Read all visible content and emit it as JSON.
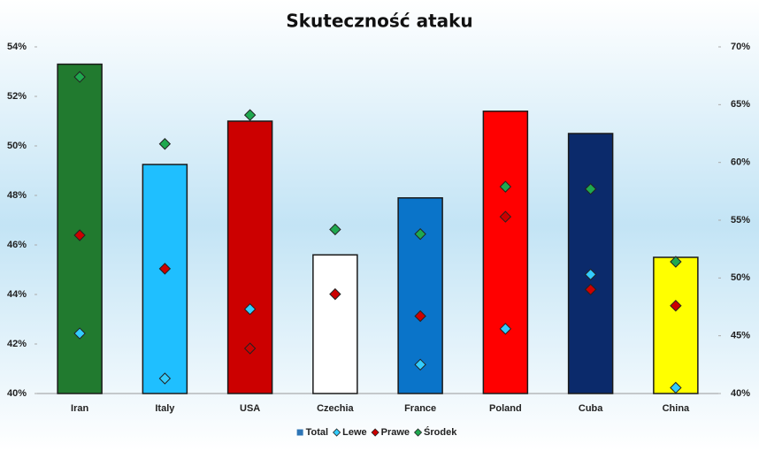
{
  "chart_data": {
    "type": "bar",
    "title": "Skuteczność ataku",
    "categories": [
      "Iran",
      "Italy",
      "USA",
      "Czechia",
      "France",
      "Poland",
      "Cuba",
      "China"
    ],
    "series": [
      {
        "name": "Total",
        "type": "bar",
        "color": "#2e75b6",
        "colors": [
          "#217a2f",
          "#1fbfff",
          "#cc0000",
          "#ffffff",
          "#0a74c9",
          "#ff0000",
          "#0b2a6b",
          "#ffff00"
        ],
        "values": [
          53.3,
          49.25,
          51.0,
          45.6,
          47.9,
          51.4,
          50.5,
          45.5
        ]
      },
      {
        "name": "Lewe",
        "type": "scatter",
        "axis": "y2",
        "color": "#33ccff",
        "values": [
          45.2,
          41.3,
          47.3,
          null,
          42.5,
          45.6,
          50.3,
          40.5
        ]
      },
      {
        "name": "Prawe",
        "type": "scatter",
        "axis": "y2",
        "color": "#cc0000",
        "values": [
          53.7,
          50.8,
          43.9,
          48.6,
          46.7,
          55.3,
          49.0,
          47.6
        ]
      },
      {
        "name": "Środek",
        "type": "scatter",
        "axis": "y2",
        "color": "#1fa84f",
        "values": [
          67.4,
          61.6,
          64.1,
          54.2,
          53.8,
          57.9,
          57.7,
          51.4
        ]
      }
    ],
    "ylim": [
      40,
      54
    ],
    "yticks": [
      {
        "value": 40,
        "label": "40%"
      },
      {
        "value": 42,
        "label": "42%"
      },
      {
        "value": 44,
        "label": "44%"
      },
      {
        "value": 46,
        "label": "46%"
      },
      {
        "value": 48,
        "label": "48%"
      },
      {
        "value": 50,
        "label": "50%"
      },
      {
        "value": 52,
        "label": "52%"
      },
      {
        "value": 54,
        "label": "54%"
      }
    ],
    "y2lim": [
      40,
      70
    ],
    "y2ticks": [
      {
        "value": 40,
        "label": "40%"
      },
      {
        "value": 45,
        "label": "45%"
      },
      {
        "value": 50,
        "label": "50%"
      },
      {
        "value": 55,
        "label": "55%"
      },
      {
        "value": 60,
        "label": "60%"
      },
      {
        "value": 65,
        "label": "65%"
      },
      {
        "value": 70,
        "label": "70%"
      }
    ],
    "legend": "bottom"
  }
}
